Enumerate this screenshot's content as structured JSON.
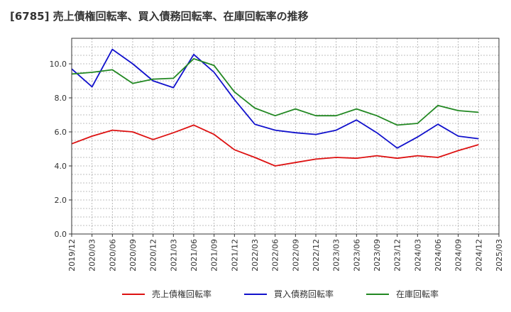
{
  "chart_data": {
    "type": "line",
    "title": "[6785]  売上債権回転率、買入債務回転率、在庫回転率の推移",
    "xlabel": "",
    "ylabel": "",
    "ylim": [
      0,
      11.5
    ],
    "yticks": [
      0.0,
      2.0,
      4.0,
      6.0,
      8.0,
      10.0
    ],
    "ytick_labels": [
      "0.0",
      "2.0",
      "4.0",
      "6.0",
      "8.0",
      "10.0"
    ],
    "grid": true,
    "legend_position": "bottom",
    "categories": [
      "2019/12",
      "2020/03",
      "2020/06",
      "2020/09",
      "2020/12",
      "2021/03",
      "2021/06",
      "2021/09",
      "2021/12",
      "2022/03",
      "2022/06",
      "2022/09",
      "2022/12",
      "2023/03",
      "2023/06",
      "2023/09",
      "2023/12",
      "2024/03",
      "2024/06",
      "2024/09",
      "2024/12",
      "2025/03"
    ],
    "series": [
      {
        "name": "売上債権回転率",
        "color": "#dd1111",
        "values": [
          5.3,
          5.75,
          6.1,
          6.0,
          5.55,
          5.95,
          6.4,
          5.85,
          4.95,
          4.5,
          4.0,
          4.2,
          4.4,
          4.5,
          4.45,
          4.6,
          4.45,
          4.6,
          4.5,
          4.9,
          5.25,
          null
        ]
      },
      {
        "name": "買入債務回転率",
        "color": "#1111cc",
        "values": [
          9.7,
          8.65,
          10.85,
          10.0,
          9.0,
          8.6,
          10.55,
          9.5,
          7.9,
          6.45,
          6.1,
          5.95,
          5.85,
          6.1,
          6.7,
          5.95,
          5.05,
          5.7,
          6.45,
          5.75,
          5.6,
          null
        ]
      },
      {
        "name": "在庫回転率",
        "color": "#228822",
        "values": [
          9.4,
          9.5,
          9.65,
          8.85,
          9.1,
          9.15,
          10.3,
          9.9,
          8.35,
          7.4,
          6.95,
          7.35,
          6.95,
          6.95,
          7.35,
          6.95,
          6.4,
          6.5,
          7.55,
          7.25,
          7.15,
          null
        ]
      }
    ]
  }
}
